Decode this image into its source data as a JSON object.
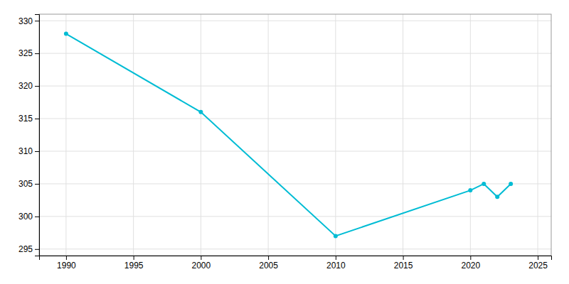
{
  "chart_data": {
    "type": "line",
    "x": [
      1990,
      2000,
      2010,
      2020,
      2021,
      2022,
      2023
    ],
    "values": [
      328,
      316,
      297,
      304,
      305,
      303,
      305
    ],
    "color": "#00BCD4",
    "marker": "circle",
    "xlim": [
      1988,
      2026
    ],
    "ylim": [
      294,
      331
    ],
    "xticks": [
      1990,
      1995,
      2000,
      2005,
      2010,
      2015,
      2020,
      2025
    ],
    "yticks": [
      295,
      300,
      305,
      310,
      315,
      320,
      325,
      330
    ],
    "grid": true
  }
}
